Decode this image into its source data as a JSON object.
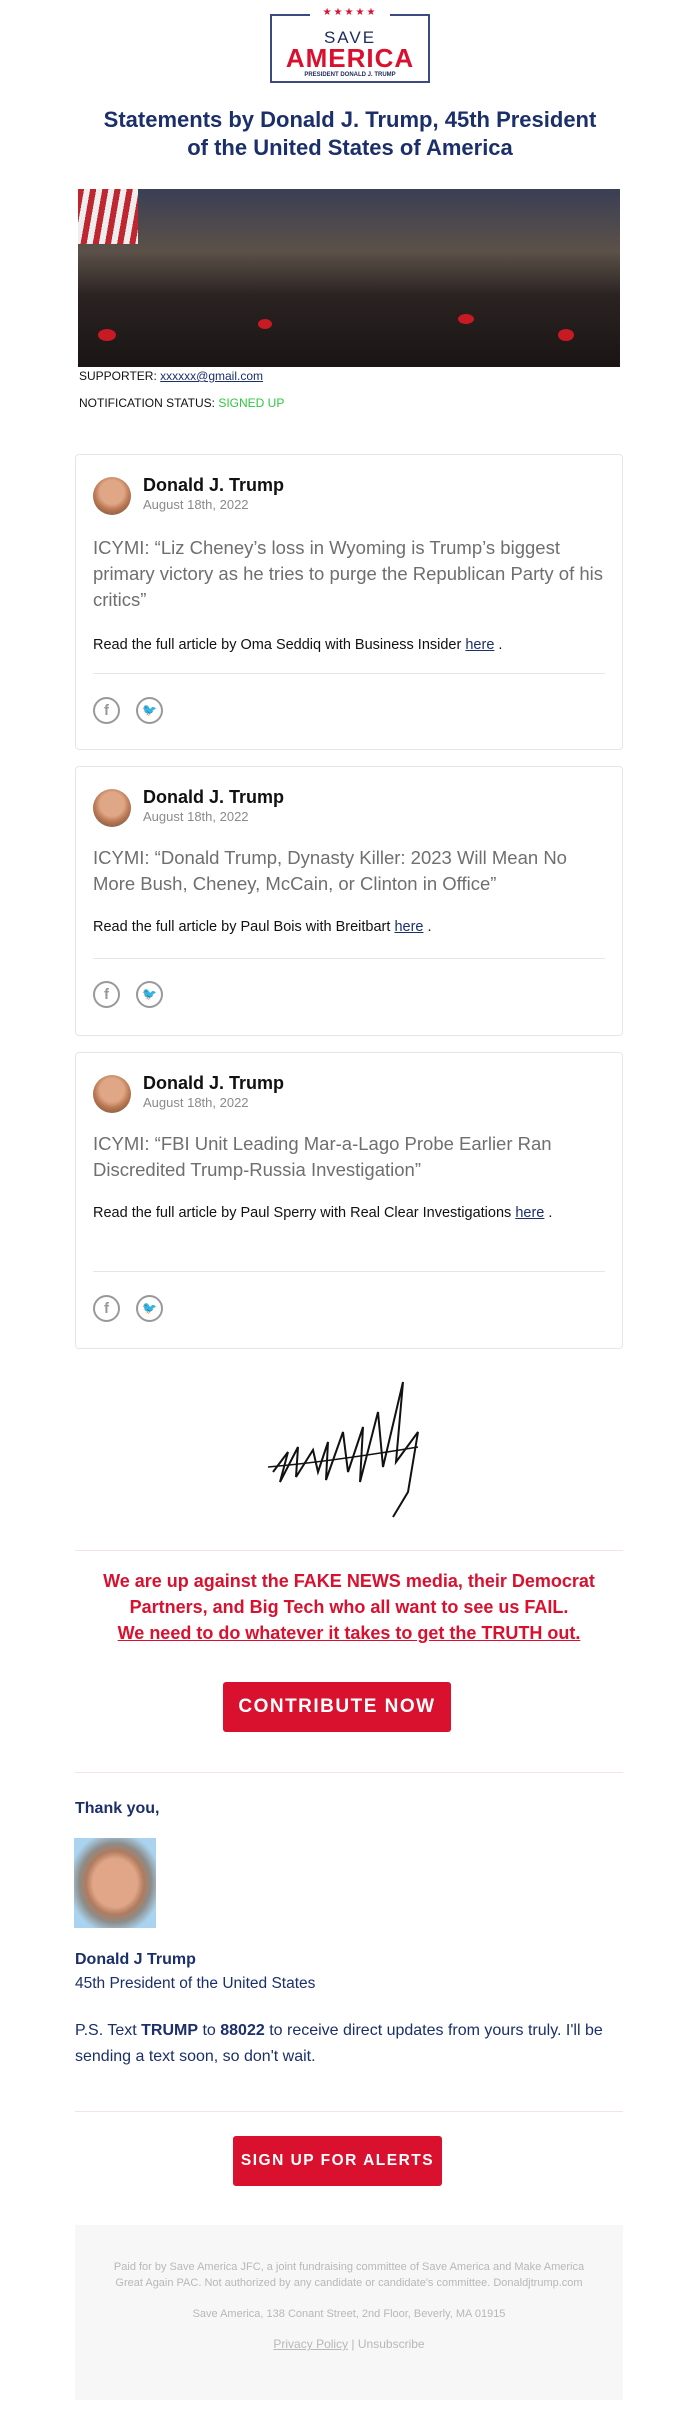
{
  "logo": {
    "stars": "★★★★★",
    "save": "SAVE",
    "america": "AMERICA",
    "tagline": "PRESIDENT DONALD J. TRUMP"
  },
  "title": "Statements by Donald J. Trump, 45th President of the United States of America",
  "supporter": {
    "label": "SUPPORTER:",
    "email": "xxxxxx@gmail.com"
  },
  "notification": {
    "label": "NOTIFICATION STATUS:",
    "status": "SIGNED UP",
    "status_color": "#2ec840"
  },
  "posts": [
    {
      "author": "Donald J. Trump",
      "date": "August 18th, 2022",
      "quote": "ICYMI: “Liz Cheney’s loss in Wyoming is Trump’s biggest primary victory as he tries to purge the Republican Party of his critics”",
      "read": "Read the full article by Oma Seddiq with Business Insider",
      "link": "here",
      "end": "."
    },
    {
      "author": "Donald J. Trump",
      "date": "August 18th, 2022",
      "quote": "ICYMI: “Donald Trump, Dynasty Killer: 2023 Will Mean No More Bush, Cheney, McCain, or Clinton in Office”",
      "read": "Read the full article by Paul Bois with Breitbart",
      "link": "here",
      "end": "."
    },
    {
      "author": "Donald J. Trump",
      "date": "August 18th, 2022",
      "quote": "ICYMI: “FBI Unit Leading Mar-a-Lago Probe Earlier Ran Discredited Trump-Russia Investigation”",
      "read": "Read the full article by Paul Sperry with Real Clear Investigations",
      "link": "here",
      "end": "."
    }
  ],
  "social": {
    "facebook": "f",
    "twitter": "🐦"
  },
  "appeal": {
    "line1": "We are up against the FAKE NEWS media, their Democrat Partners, and Big Tech who all want to see us FAIL.",
    "line2": "We need to do whatever it takes to get the TRUTH out."
  },
  "contribute_label": "CONTRIBUTE NOW",
  "thanks": "Thank you,",
  "signoff": {
    "name": "Donald J Trump",
    "role": "45th President of the United States"
  },
  "ps": {
    "p1": "P.S. Text ",
    "kw": "TRUMP",
    "p2": " to ",
    "num": "88022",
    "p3": " to receive direct updates from yours truly. I'll be sending a text soon, so don't wait."
  },
  "signup_label": "SIGN UP FOR ALERTS",
  "footer": {
    "disclaimer": "Paid for by Save America JFC, a joint fundraising committee of Save America and Make America Great Again PAC. Not authorized by any candidate or candidate's committee. Donaldjtrump.com",
    "address": "Save America, 138 Conant Street, 2nd Floor, Beverly, MA 01915",
    "privacy": "Privacy Policy",
    "sep": "|",
    "unsubscribe": "Unsubscribe"
  },
  "colors": {
    "navy": "#1b2f6b",
    "red": "#d9112f"
  }
}
